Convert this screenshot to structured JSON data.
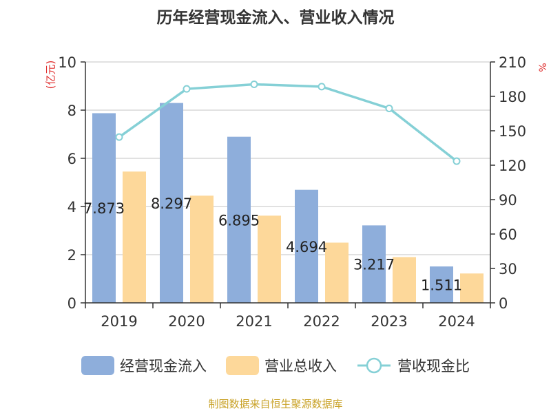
{
  "chart_data": {
    "type": "bar",
    "title": "历年经营现金流入、营业收入情况",
    "categories": [
      "2019",
      "2020",
      "2021",
      "2022",
      "2023",
      "2024"
    ],
    "y_left_unit": "(亿元)",
    "y_right_unit": "%",
    "y_left_ticks": [
      "0",
      "2",
      "4",
      "6",
      "8",
      "10"
    ],
    "y_right_ticks": [
      "0",
      "30",
      "60",
      "90",
      "120",
      "150",
      "180",
      "210"
    ],
    "ylim": [
      0,
      10
    ],
    "ylim_right": [
      0,
      210
    ],
    "series": [
      {
        "name": "经营现金流入",
        "type": "bar",
        "color": "#8eaedb",
        "values": [
          7.873,
          8.297,
          6.895,
          4.694,
          3.217,
          1.511
        ],
        "labels": [
          "7.873",
          "8.297",
          "6.895",
          "4.694",
          "3.217",
          "1.511"
        ]
      },
      {
        "name": "营业总收入",
        "type": "bar",
        "color": "#fdd89a",
        "values": [
          5.45,
          4.45,
          3.62,
          2.5,
          1.9,
          1.22
        ]
      },
      {
        "name": "营收现金比",
        "type": "line",
        "axis": "right",
        "color": "#85d0d6",
        "values": [
          144.5,
          186.5,
          190.5,
          188.5,
          169.5,
          123.5
        ]
      }
    ],
    "grid": true,
    "legend_position": "bottom"
  },
  "source": "制图数据来自恒生聚源数据库"
}
